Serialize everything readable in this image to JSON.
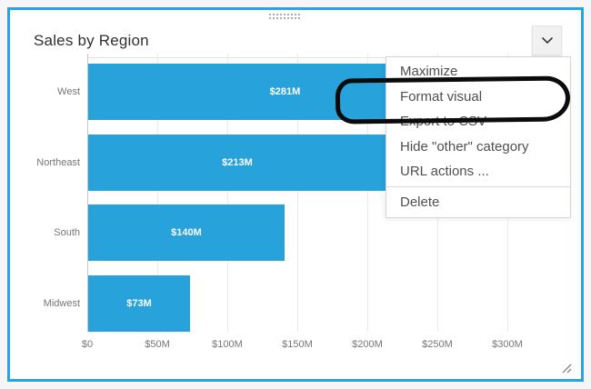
{
  "window": {
    "background": "#f6f6f6"
  },
  "visual": {
    "title": "Sales by Region",
    "accent_border_color": "#2aa4dc",
    "options_button": {
      "icon": "chevron-down"
    },
    "drag_handle": {
      "icon": "drag-grip-dots"
    },
    "resize_handle": {
      "icon": "resize-grip"
    }
  },
  "context_menu": {
    "items": [
      {
        "id": "maximize",
        "label": "Maximize"
      },
      {
        "id": "format-visual",
        "label": "Format visual"
      },
      {
        "id": "export-to-csv",
        "label": "Export to CSV"
      },
      {
        "id": "hide-other-category",
        "label": "Hide \"other\" category"
      },
      {
        "id": "url-actions",
        "label": "URL actions ..."
      },
      {
        "id": "delete",
        "label": "Delete",
        "separator_above": true
      }
    ]
  },
  "annotation": {
    "shape": "hand-drawn-oval",
    "highlights": "Format visual",
    "color": "#0b0b0b"
  },
  "chart_data": {
    "type": "bar",
    "orientation": "horizontal",
    "title": "Sales by Region",
    "categories": [
      "West",
      "Northeast",
      "South",
      "Midwest"
    ],
    "values": [
      281,
      213,
      140,
      73
    ],
    "data_labels": [
      "$281M",
      "$213M",
      "$140M",
      "$73M"
    ],
    "x_ticks": [
      "$0",
      "$50M",
      "$100M",
      "$150M",
      "$200M",
      "$250M",
      "$300M"
    ],
    "x_tick_values": [
      0,
      50,
      100,
      150,
      200,
      250,
      300
    ],
    "xlim": [
      0,
      350
    ],
    "xlabel": "",
    "ylabel": "",
    "bar_color": "#27a2db",
    "data_label_color": "#ffffff",
    "grid": true,
    "legend": "none"
  }
}
